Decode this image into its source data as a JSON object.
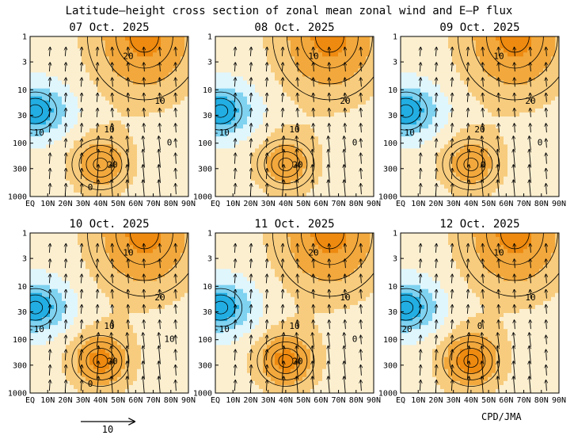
{
  "title": "Latitude–height cross section of zonal mean zonal wind and E–P flux",
  "credit": "CPD/JMA",
  "colors": {
    "easterly_strong": "#22aee2",
    "easterly_mid": "#7fd2f0",
    "easterly_weak": "#dff6fd",
    "westerly_weak": "#fcefcf",
    "westerly_mid": "#f7cc7e",
    "westerly_strong": "#f2a83c",
    "westerly_core": "#ee8a10",
    "contour": "#000000"
  },
  "chart_data": {
    "type": "heatmap",
    "variable": "zonal mean zonal wind (contours, shading) and E-P flux (arrows)",
    "x_ticks": [
      "EQ",
      "10N",
      "20N",
      "30N",
      "40N",
      "50N",
      "60N",
      "70N",
      "80N",
      "90N"
    ],
    "y_ticks": [
      "1",
      "3",
      "10",
      "30",
      "100",
      "300",
      "1000"
    ],
    "xlim": [
      0,
      90
    ],
    "ylim_hpa": [
      1000,
      1
    ],
    "reference_vector": {
      "label": "10",
      "magnitude": 10
    },
    "panels": [
      {
        "date": "07 Oct. 2025",
        "contour_labels": [
          "20",
          "10",
          "-10",
          "10",
          "20",
          "0",
          "0"
        ],
        "wind_maxima": [
          {
            "lat": 65,
            "p_hpa": 1,
            "u": 30
          },
          {
            "lat": 40,
            "p_hpa": 250,
            "u": 25
          },
          {
            "lat": 3,
            "p_hpa": 25,
            "u": -30
          }
        ]
      },
      {
        "date": "08 Oct. 2025",
        "contour_labels": [
          "10",
          "20",
          "-10",
          "10",
          "20",
          "0"
        ],
        "wind_maxima": [
          {
            "lat": 65,
            "p_hpa": 1,
            "u": 30
          },
          {
            "lat": 40,
            "p_hpa": 250,
            "u": 24
          },
          {
            "lat": 3,
            "p_hpa": 25,
            "u": -30
          }
        ]
      },
      {
        "date": "09 Oct. 2025",
        "contour_labels": [
          "10",
          "20",
          "-10",
          "20",
          "0",
          "0"
        ],
        "wind_maxima": [
          {
            "lat": 65,
            "p_hpa": 1,
            "u": 30
          },
          {
            "lat": 40,
            "p_hpa": 250,
            "u": 24
          },
          {
            "lat": 3,
            "p_hpa": 25,
            "u": -30
          }
        ]
      },
      {
        "date": "10 Oct. 2025",
        "contour_labels": [
          "10",
          "20",
          "-10",
          "10",
          "20",
          "10",
          "0"
        ],
        "wind_maxima": [
          {
            "lat": 65,
            "p_hpa": 1,
            "u": 30
          },
          {
            "lat": 40,
            "p_hpa": 250,
            "u": 30
          },
          {
            "lat": 3,
            "p_hpa": 25,
            "u": -30
          }
        ]
      },
      {
        "date": "11 Oct. 2025",
        "contour_labels": [
          "20",
          "10",
          "-10",
          "10",
          "20",
          "0"
        ],
        "wind_maxima": [
          {
            "lat": 65,
            "p_hpa": 1,
            "u": 30
          },
          {
            "lat": 40,
            "p_hpa": 250,
            "u": 30
          },
          {
            "lat": 3,
            "p_hpa": 25,
            "u": -30
          }
        ]
      },
      {
        "date": "12 Oct. 2025",
        "contour_labels": [
          "10",
          "10",
          "20",
          "0"
        ],
        "wind_maxima": [
          {
            "lat": 65,
            "p_hpa": 1,
            "u": 30
          },
          {
            "lat": 40,
            "p_hpa": 250,
            "u": 32
          },
          {
            "lat": 3,
            "p_hpa": 25,
            "u": -30
          }
        ]
      }
    ]
  }
}
